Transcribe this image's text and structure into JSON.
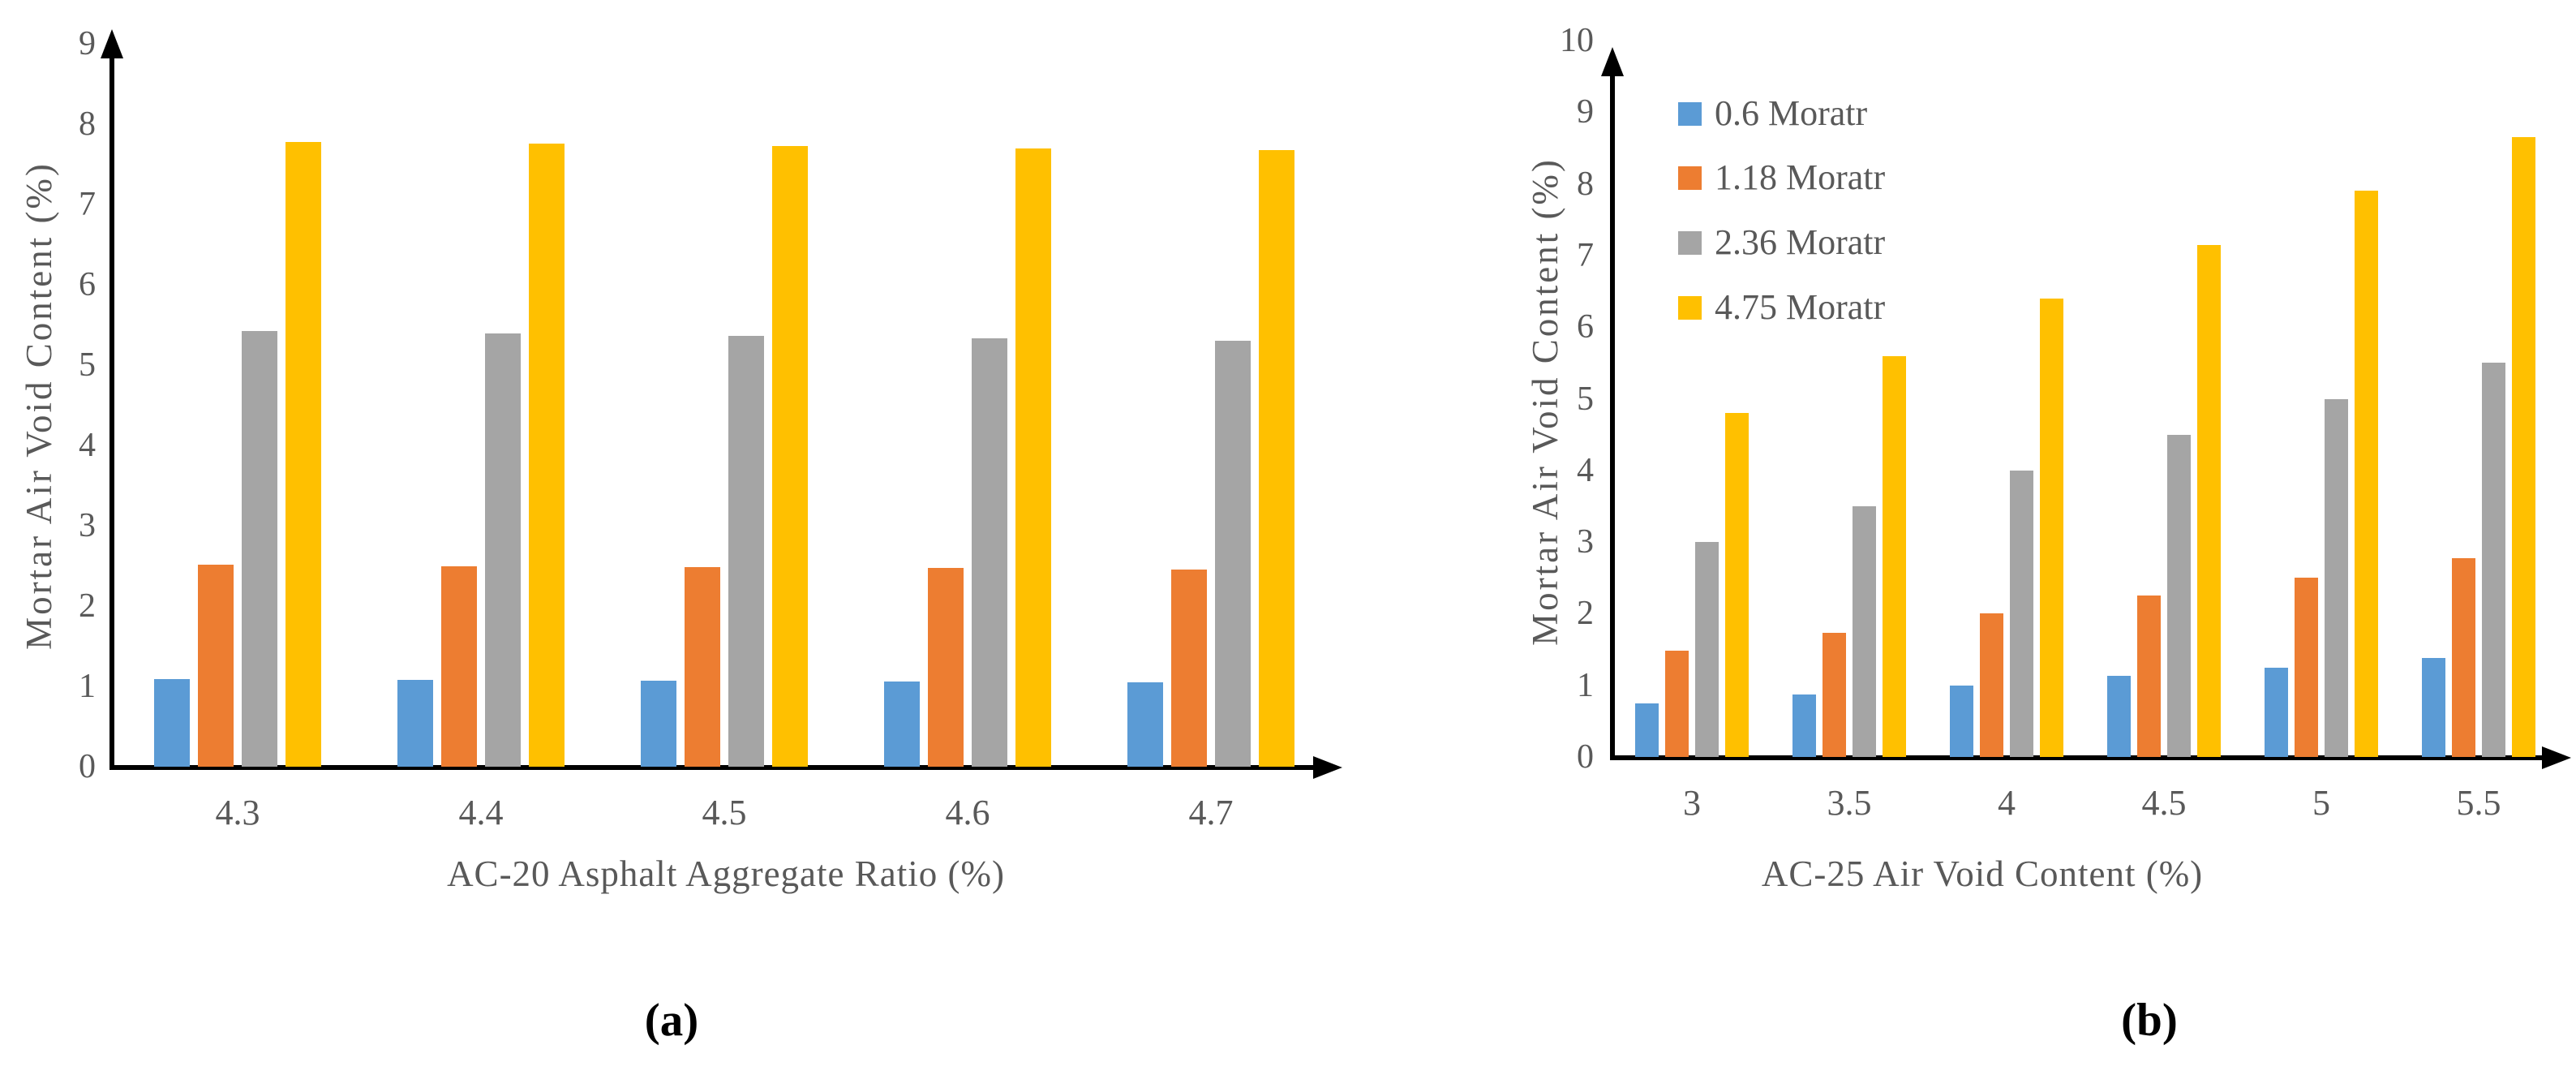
{
  "figure": {
    "background": "#ffffff",
    "axis_color": "#000000",
    "text_color": "#595959",
    "caption_color": "#000000"
  },
  "chart_data": [
    {
      "id": "a",
      "type": "bar",
      "caption": "(a)",
      "xlabel": "AC-20 Asphalt Aggregate Ratio (%)",
      "ylabel": "Mortar Air Void Content (%)",
      "ylim": [
        0,
        9
      ],
      "yticks": [
        "0",
        "1",
        "2",
        "3",
        "4",
        "5",
        "6",
        "7",
        "8",
        "9"
      ],
      "categories": [
        "4.3",
        "4.4",
        "4.5",
        "4.6",
        "4.7"
      ],
      "grid": false,
      "legend_shown": false,
      "series": [
        {
          "name": "0.6 Moratr",
          "color": "#5B9BD5",
          "values": [
            1.09,
            1.08,
            1.07,
            1.06,
            1.05
          ]
        },
        {
          "name": "1.18 Moratr",
          "color": "#ED7D31",
          "values": [
            2.52,
            2.5,
            2.48,
            2.47,
            2.45
          ]
        },
        {
          "name": "2.36 Moratr",
          "color": "#A5A5A5",
          "values": [
            5.42,
            5.39,
            5.36,
            5.33,
            5.3
          ]
        },
        {
          "name": "4.75 Moratr",
          "color": "#FFC000",
          "values": [
            7.78,
            7.76,
            7.73,
            7.7,
            7.68
          ]
        }
      ]
    },
    {
      "id": "b",
      "type": "bar",
      "caption": "(b)",
      "xlabel": "AC-25 Air Void Content (%)",
      "ylabel": "Mortar Air Void Content (%)",
      "ylim": [
        0,
        10
      ],
      "yticks": [
        "0",
        "1",
        "2",
        "3",
        "4",
        "5",
        "6",
        "7",
        "8",
        "9",
        "10"
      ],
      "categories": [
        "3",
        "3.5",
        "4",
        "4.5",
        "5",
        "5.5"
      ],
      "grid": false,
      "legend_shown": true,
      "legend_position": "top-left",
      "legend_entries": [
        "0.6 Moratr",
        "1.18 Moratr",
        "2.36 Moratr",
        "4.75 Moratr"
      ],
      "series": [
        {
          "name": "0.6 Moratr",
          "color": "#5B9BD5",
          "values": [
            0.75,
            0.87,
            1.0,
            1.13,
            1.25,
            1.38
          ]
        },
        {
          "name": "1.18 Moratr",
          "color": "#ED7D31",
          "values": [
            1.48,
            1.73,
            2.0,
            2.25,
            2.5,
            2.77
          ]
        },
        {
          "name": "2.36 Moratr",
          "color": "#A5A5A5",
          "values": [
            3.0,
            3.5,
            4.0,
            4.5,
            5.0,
            5.5
          ]
        },
        {
          "name": "4.75 Moratr",
          "color": "#FFC000",
          "values": [
            4.8,
            5.6,
            6.4,
            7.15,
            7.9,
            8.65
          ]
        }
      ]
    }
  ]
}
